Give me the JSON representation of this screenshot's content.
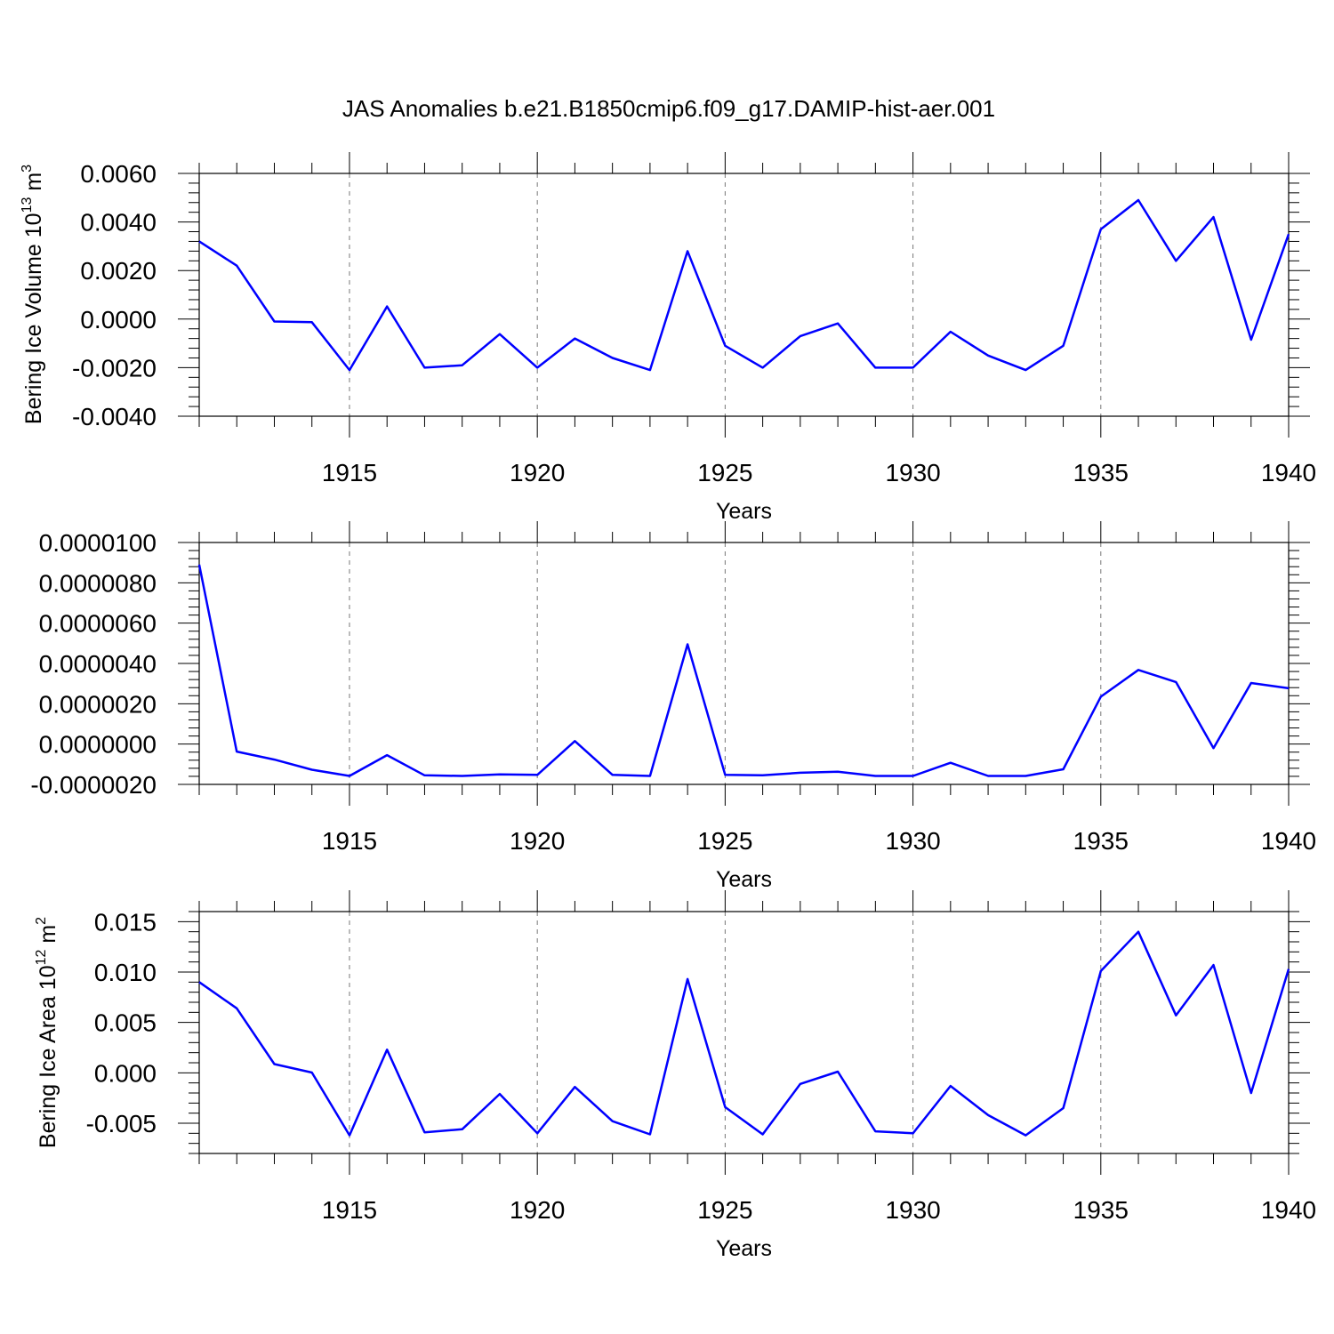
{
  "figure": {
    "title": "JAS Anomalies b.e21.B1850cmip6.f09_g17.DAMIP-hist-aer.001"
  },
  "colors": {
    "line": "#0000ff",
    "axis": "#000000",
    "grid": "#777777"
  },
  "chart_data": [
    {
      "type": "line",
      "title": "JAS Anomalies b.e21.B1850cmip6.f09_g17.DAMIP-hist-aer.001",
      "xlabel": "Years",
      "ylabel": "Bering Ice Volume 10",
      "ylabel_sup": "13",
      "ylabel_unit": " m",
      "ylabel_unit_sup": "3",
      "xlim": [
        1911,
        1940
      ],
      "ylim": [
        -0.004,
        0.006
      ],
      "x_ticks": [
        "1915",
        "1920",
        "1925",
        "1930",
        "1935",
        "1940"
      ],
      "y_ticks": [
        "0.0060",
        "0.0040",
        "0.0020",
        "0.0000",
        "-0.0020",
        "-0.0040"
      ],
      "grid": "vertical dashed at major x ticks",
      "x": [
        1911,
        1912,
        1913,
        1914,
        1915,
        1916,
        1917,
        1918,
        1919,
        1920,
        1921,
        1922,
        1923,
        1924,
        1925,
        1926,
        1927,
        1928,
        1929,
        1930,
        1931,
        1932,
        1933,
        1934,
        1935,
        1936,
        1937,
        1938,
        1939,
        1940
      ],
      "y": [
        0.0032,
        0.0022,
        -0.0001,
        -0.00013,
        -0.0021,
        0.00052,
        -0.002,
        -0.0019,
        -0.00062,
        -0.002,
        -0.0008,
        -0.0016,
        -0.0021,
        0.0028,
        -0.0011,
        -0.002,
        -0.0007,
        -0.00018,
        -0.002,
        -0.002,
        -0.00052,
        -0.0015,
        -0.0021,
        -0.0011,
        0.0037,
        0.0049,
        0.0024,
        0.0042,
        -0.00085,
        0.0035
      ]
    },
    {
      "type": "line",
      "xlabel": "Years",
      "ylabel": "",
      "xlim": [
        1911,
        1940
      ],
      "ylim": [
        -2e-06,
        1e-05
      ],
      "x_ticks": [
        "1915",
        "1920",
        "1925",
        "1930",
        "1935",
        "1940"
      ],
      "y_ticks": [
        "0.0000100",
        "0.0000080",
        "0.0000060",
        "0.0000040",
        "0.0000020",
        "0.0000000",
        "-0.0000020"
      ],
      "grid": "vertical dashed at major x ticks",
      "x": [
        1911,
        1912,
        1913,
        1914,
        1915,
        1916,
        1917,
        1918,
        1919,
        1920,
        1921,
        1922,
        1923,
        1924,
        1925,
        1926,
        1927,
        1928,
        1929,
        1930,
        1931,
        1932,
        1933,
        1934,
        1935,
        1936,
        1937,
        1938,
        1939,
        1940
      ],
      "y": [
        8.9e-06,
        -3.7e-07,
        -7.7e-07,
        -1.27e-06,
        -1.58e-06,
        -5.5e-07,
        -1.55e-06,
        -1.58e-06,
        -1.5e-06,
        -1.53e-06,
        1.5e-07,
        -1.53e-06,
        -1.58e-06,
        4.95e-06,
        -1.53e-06,
        -1.55e-06,
        -1.42e-06,
        -1.37e-06,
        -1.58e-06,
        -1.58e-06,
        -9.3e-07,
        -1.58e-06,
        -1.58e-06,
        -1.25e-06,
        2.35e-06,
        3.68e-06,
        3.08e-06,
        -2e-07,
        3.03e-06,
        2.77e-06
      ]
    },
    {
      "type": "line",
      "xlabel": "Years",
      "ylabel": "Bering Ice Area 10",
      "ylabel_sup": "12",
      "ylabel_unit": " m",
      "ylabel_unit_sup": "2",
      "xlim": [
        1911,
        1940
      ],
      "ylim": [
        -0.008,
        0.016
      ],
      "x_ticks": [
        "1915",
        "1920",
        "1925",
        "1930",
        "1935",
        "1940"
      ],
      "y_ticks": [
        "0.015",
        "0.010",
        "0.005",
        "0.000",
        "-0.005"
      ],
      "grid": "vertical dashed at major x ticks",
      "x": [
        1911,
        1912,
        1913,
        1914,
        1915,
        1916,
        1917,
        1918,
        1919,
        1920,
        1921,
        1922,
        1923,
        1924,
        1925,
        1926,
        1927,
        1928,
        1929,
        1930,
        1931,
        1932,
        1933,
        1934,
        1935,
        1936,
        1937,
        1938,
        1939,
        1940
      ],
      "y": [
        0.009,
        0.0064,
        0.00087,
        3e-05,
        -0.0062,
        0.0023,
        -0.0059,
        -0.0056,
        -0.0021,
        -0.006,
        -0.0014,
        -0.0048,
        -0.0061,
        0.0093,
        -0.0034,
        -0.0061,
        -0.0011,
        0.00012,
        -0.0058,
        -0.006,
        -0.0013,
        -0.0042,
        -0.0062,
        -0.0035,
        0.0101,
        0.014,
        0.0057,
        0.0107,
        -0.002,
        0.0103
      ]
    }
  ]
}
